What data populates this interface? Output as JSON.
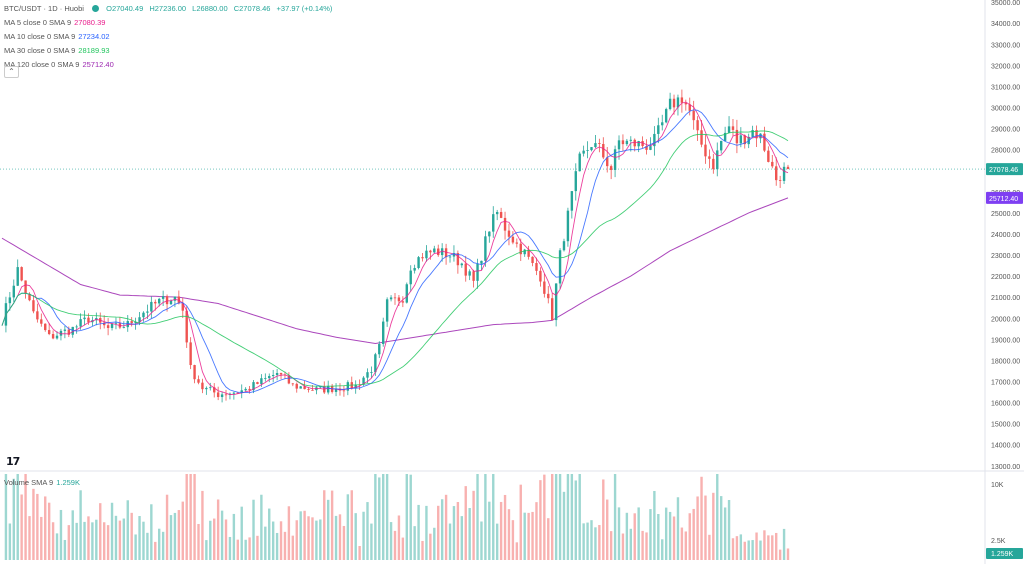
{
  "header": {
    "symbol": "BTC/USDT",
    "interval": "1D",
    "exchange": "Huobi",
    "ohlc": {
      "open_label": "O",
      "open": "27040.49",
      "high_label": "H",
      "high": "27236.00",
      "low_label": "L",
      "low": "26880.00",
      "close_label": "C",
      "close": "27078.46",
      "change": "+37.97 (+0.14%)"
    }
  },
  "indicators": [
    {
      "label": "MA 5 close 0 SMA 9",
      "value": "27080.39",
      "color": "#e91e8c"
    },
    {
      "label": "MA 10 close 0 SMA 9",
      "value": "27234.02",
      "color": "#2962ff"
    },
    {
      "label": "MA 30 close 0 SMA 9",
      "value": "28189.93",
      "color": "#22c55e"
    },
    {
      "label": "MA 120 close 0 SMA 9",
      "value": "25712.40",
      "color": "#9c27b0"
    }
  ],
  "collapse_icon": "chevron-up-icon",
  "logo_text": "17",
  "volume": {
    "label": "Volume SMA 9",
    "value": "1.259K",
    "axis_ticks": [
      "10K",
      "2.5K"
    ],
    "last_tag": "1.259K"
  },
  "chart_data": {
    "type": "candlestick",
    "y_axis_ticks": [
      13000,
      14000,
      15000,
      16000,
      17000,
      18000,
      19000,
      20000,
      21000,
      22000,
      23000,
      24000,
      25000,
      26000,
      27000,
      28000,
      29000,
      30000,
      31000,
      32000,
      33000,
      34000,
      35000
    ],
    "ylim": [
      12800,
      35100
    ],
    "price_tags": [
      {
        "value": 27078.46,
        "label": "27078.46",
        "color": "#26a69a"
      },
      {
        "value": 25712.4,
        "label": "25712.40",
        "color": "#7e3ff2"
      }
    ],
    "up_color": "#26a69a",
    "down_color": "#ef5350",
    "keypoints": [
      [
        0,
        19900
      ],
      [
        4,
        22300
      ],
      [
        8,
        20200
      ],
      [
        12,
        19100
      ],
      [
        18,
        19500
      ],
      [
        22,
        20000
      ],
      [
        27,
        19500
      ],
      [
        32,
        19700
      ],
      [
        36,
        20300
      ],
      [
        40,
        20800
      ],
      [
        44,
        21000
      ],
      [
        46,
        20400
      ],
      [
        48,
        17600
      ],
      [
        51,
        16700
      ],
      [
        55,
        16400
      ],
      [
        59,
        16500
      ],
      [
        62,
        16600
      ],
      [
        66,
        17000
      ],
      [
        70,
        17400
      ],
      [
        74,
        16800
      ],
      [
        80,
        16600
      ],
      [
        85,
        16700
      ],
      [
        90,
        16800
      ],
      [
        94,
        17600
      ],
      [
        96,
        18600
      ],
      [
        98,
        20700
      ],
      [
        102,
        21000
      ],
      [
        104,
        22500
      ],
      [
        107,
        23000
      ],
      [
        110,
        23200
      ],
      [
        114,
        23000
      ],
      [
        117,
        22600
      ],
      [
        120,
        21700
      ],
      [
        122,
        23000
      ],
      [
        124,
        24300
      ],
      [
        126,
        25000
      ],
      [
        128,
        24300
      ],
      [
        131,
        23500
      ],
      [
        133,
        23100
      ],
      [
        135,
        22500
      ],
      [
        137,
        22000
      ],
      [
        140,
        20100
      ],
      [
        142,
        23000
      ],
      [
        145,
        25800
      ],
      [
        147,
        27500
      ],
      [
        150,
        28300
      ],
      [
        152,
        28000
      ],
      [
        155,
        27100
      ],
      [
        157,
        28400
      ],
      [
        160,
        28300
      ],
      [
        164,
        28200
      ],
      [
        166,
        28400
      ],
      [
        168,
        29200
      ],
      [
        170,
        30100
      ],
      [
        173,
        30500
      ],
      [
        175,
        29800
      ],
      [
        177,
        28600
      ],
      [
        179,
        27900
      ],
      [
        181,
        27300
      ],
      [
        183,
        28400
      ],
      [
        185,
        29100
      ],
      [
        187,
        28400
      ],
      [
        189,
        28600
      ],
      [
        191,
        28900
      ],
      [
        193,
        28600
      ],
      [
        195,
        27600
      ],
      [
        197,
        26600
      ],
      [
        199,
        27000
      ],
      [
        200,
        27078
      ]
    ],
    "ma_curves": [
      {
        "name": "MA 5 close 0 SMA 9",
        "period": 5,
        "color": "#e91e8c"
      },
      {
        "name": "MA 10 close 0 SMA 9",
        "period": 10,
        "color": "#2962ff"
      },
      {
        "name": "MA 30 close 0 SMA 9",
        "period": 30,
        "color": "#22c55e"
      },
      {
        "name": "MA 120 close 0 SMA 9",
        "period": 120,
        "color": "#9c27b0",
        "points": [
          [
            0,
            23800
          ],
          [
            10,
            22700
          ],
          [
            20,
            21600
          ],
          [
            30,
            21100
          ],
          [
            45,
            21000
          ],
          [
            55,
            20700
          ],
          [
            65,
            20100
          ],
          [
            75,
            19500
          ],
          [
            85,
            19100
          ],
          [
            95,
            18800
          ],
          [
            105,
            19100
          ],
          [
            115,
            19400
          ],
          [
            125,
            19700
          ],
          [
            135,
            19800
          ],
          [
            140,
            19900
          ],
          [
            150,
            21000
          ],
          [
            160,
            22000
          ],
          [
            170,
            23200
          ],
          [
            180,
            24100
          ],
          [
            190,
            25000
          ],
          [
            200,
            25712
          ]
        ]
      }
    ]
  }
}
